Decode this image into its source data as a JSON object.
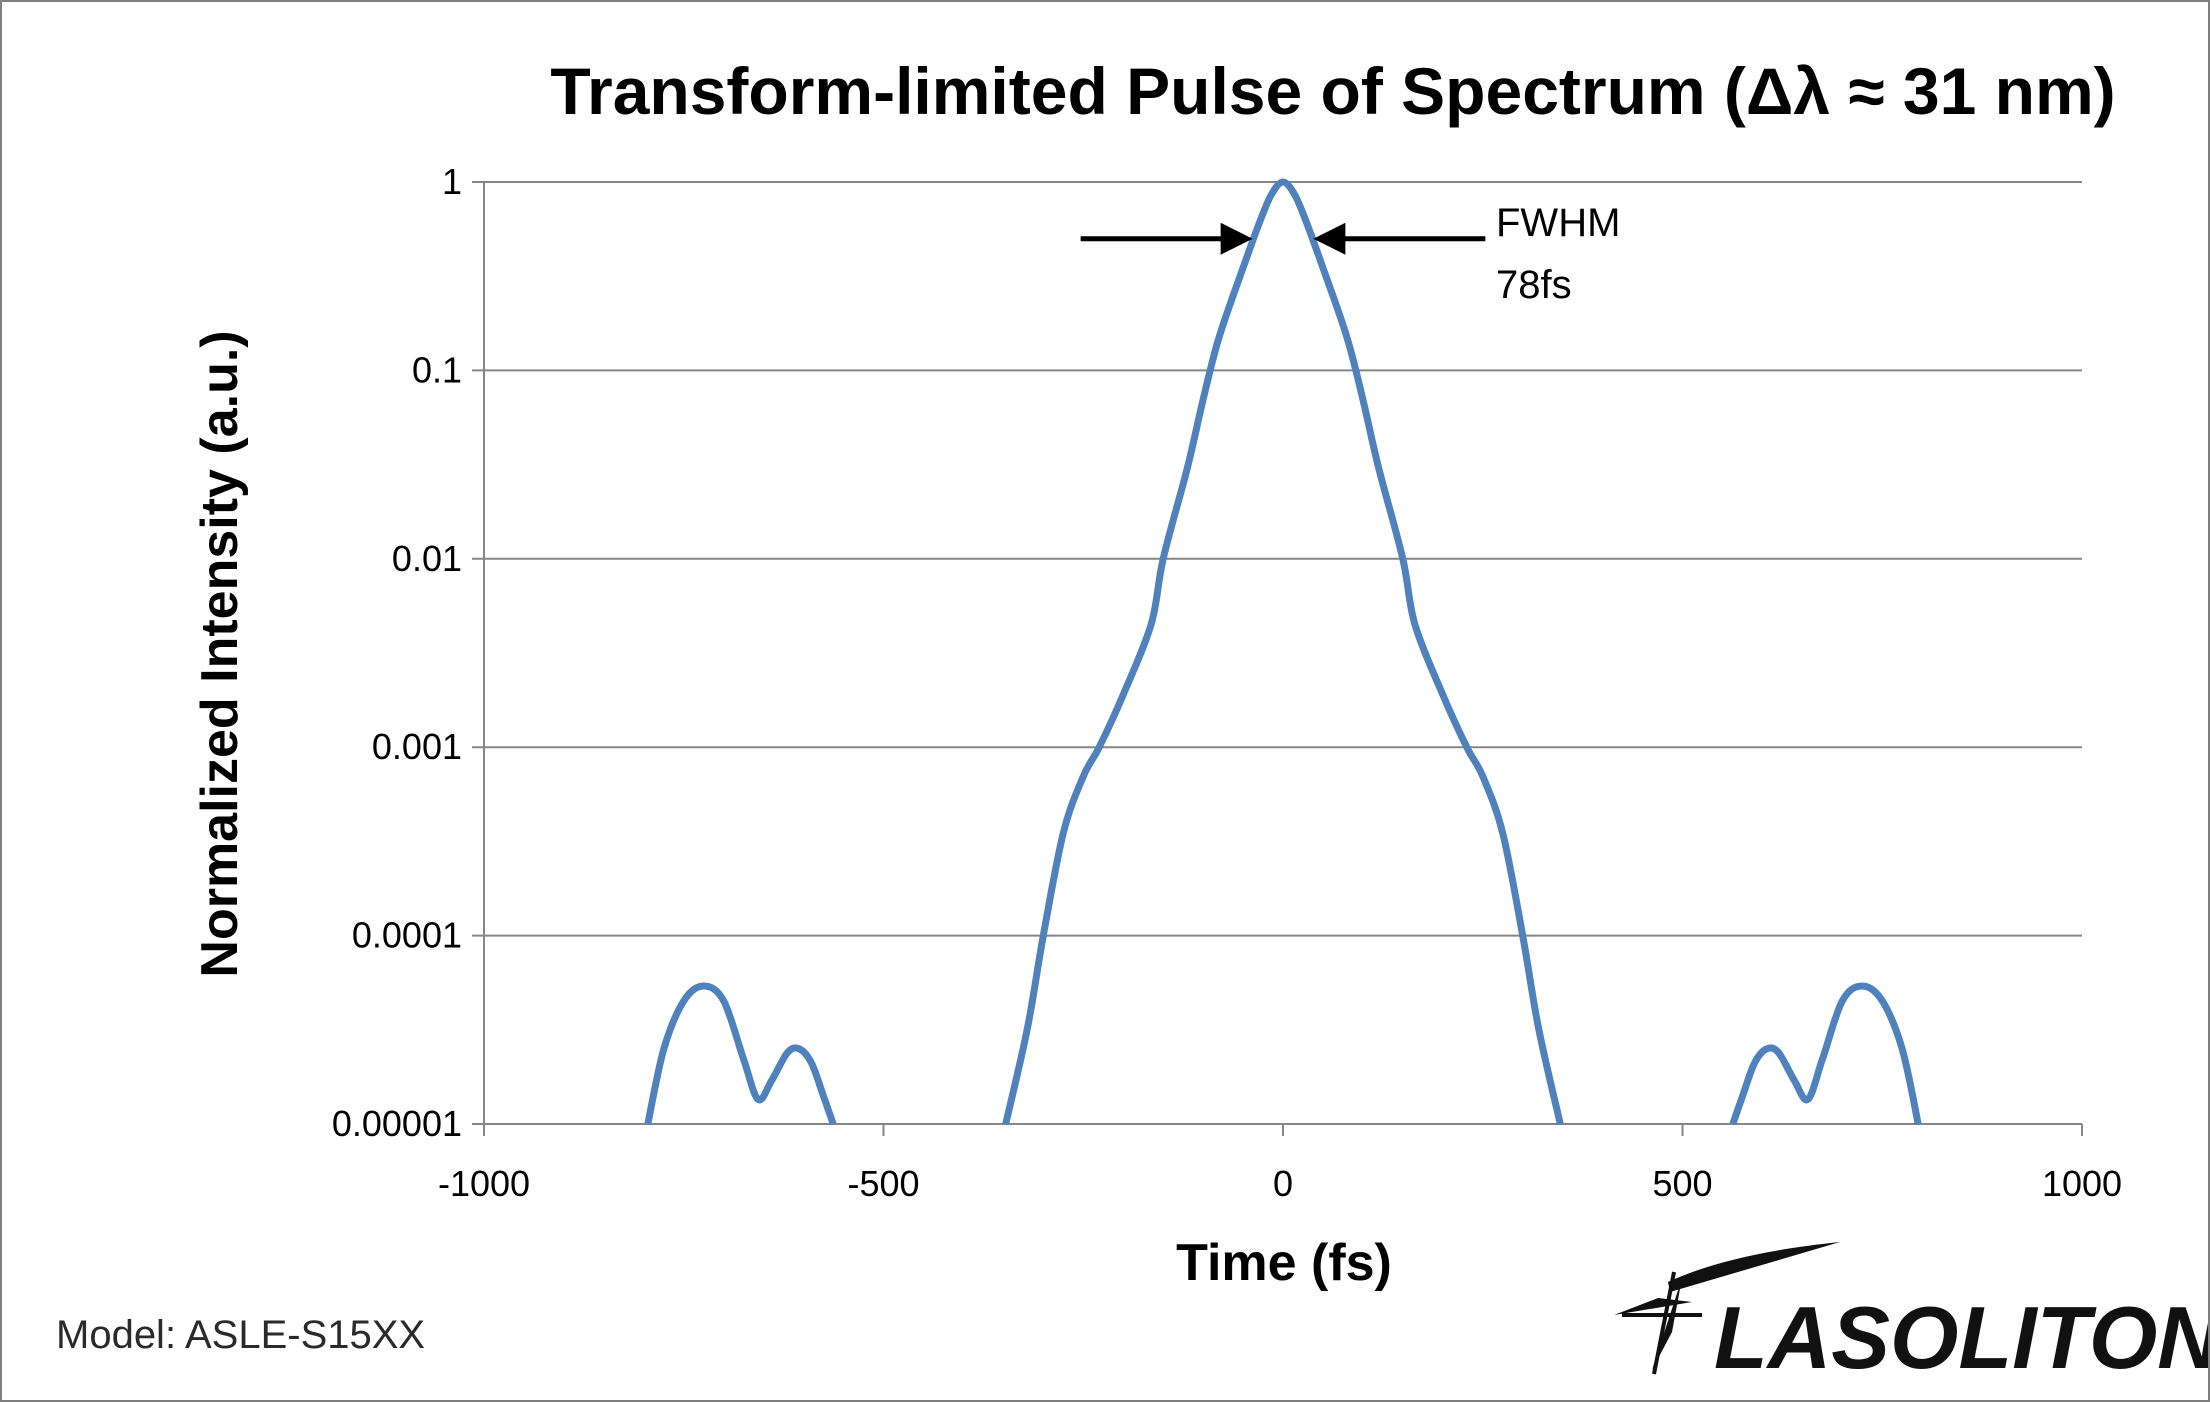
{
  "chart_data": {
    "type": "line",
    "title": "Transform-limited Pulse of Spectrum (Δλ ≈ 31 nm)",
    "xlabel": "Time (fs)",
    "ylabel": "Normalized Intensity (a.u.)",
    "xlim": [
      -1000,
      1000
    ],
    "ylim": [
      1e-05,
      1
    ],
    "yscale": "log",
    "grid": true,
    "x_ticks": [
      {
        "value": -1000,
        "label": "-1000"
      },
      {
        "value": -500,
        "label": "-500"
      },
      {
        "value": 0,
        "label": "0"
      },
      {
        "value": 500,
        "label": "500"
      },
      {
        "value": 1000,
        "label": "1000"
      }
    ],
    "y_ticks": [
      {
        "value": 1,
        "label": "1"
      },
      {
        "value": 0.1,
        "label": "0.1"
      },
      {
        "value": 0.01,
        "label": "0.01"
      },
      {
        "value": 0.001,
        "label": "0.001"
      },
      {
        "value": 0.0001,
        "label": "0.0001"
      },
      {
        "value": 1e-05,
        "label": "0.00001"
      }
    ],
    "series": [
      {
        "name": "Transform-limited pulse",
        "color": "#4f81bd",
        "segments": [
          [
            [
              -795,
              1e-05
            ],
            [
              -775,
              2.5e-05
            ],
            [
              -750,
              4.5e-05
            ],
            [
              -725,
              5.4e-05
            ],
            [
              -700,
              4.5e-05
            ],
            [
              -675,
              2.2e-05
            ],
            [
              -657,
              1.35e-05
            ],
            [
              -640,
              1.7e-05
            ],
            [
              -620,
              2.4e-05
            ],
            [
              -605,
              2.5e-05
            ],
            [
              -590,
              2.1e-05
            ],
            [
              -575,
              1.4e-05
            ],
            [
              -563,
              1e-05
            ]
          ],
          [
            [
              -347,
              1e-05
            ],
            [
              -320,
              3.2e-05
            ],
            [
              -300,
              0.0001
            ],
            [
              -275,
              0.00035
            ],
            [
              -250,
              0.0007
            ],
            [
              -230,
              0.001
            ],
            [
              -200,
              0.0019
            ],
            [
              -165,
              0.0045
            ],
            [
              -150,
              0.01
            ],
            [
              -120,
              0.03
            ],
            [
              -100,
              0.07
            ],
            [
              -80,
              0.15
            ],
            [
              -50,
              0.35
            ],
            [
              -30,
              0.6
            ],
            [
              -15,
              0.85
            ],
            [
              0,
              1
            ],
            [
              15,
              0.85
            ],
            [
              30,
              0.6
            ],
            [
              50,
              0.35
            ],
            [
              80,
              0.15
            ],
            [
              100,
              0.07
            ],
            [
              120,
              0.03
            ],
            [
              150,
              0.01
            ],
            [
              165,
              0.0045
            ],
            [
              200,
              0.0019
            ],
            [
              230,
              0.001
            ],
            [
              250,
              0.0007
            ],
            [
              275,
              0.00035
            ],
            [
              300,
              0.0001
            ],
            [
              320,
              3.2e-05
            ],
            [
              347,
              1e-05
            ]
          ],
          [
            [
              563,
              1e-05
            ],
            [
              575,
              1.4e-05
            ],
            [
              590,
              2.1e-05
            ],
            [
              605,
              2.5e-05
            ],
            [
              620,
              2.4e-05
            ],
            [
              640,
              1.7e-05
            ],
            [
              657,
              1.35e-05
            ],
            [
              675,
              2.2e-05
            ],
            [
              700,
              4.5e-05
            ],
            [
              725,
              5.4e-05
            ],
            [
              750,
              4.5e-05
            ],
            [
              775,
              2.5e-05
            ],
            [
              795,
              1e-05
            ]
          ]
        ]
      }
    ],
    "annotations": {
      "fwhm_label": "FWHM",
      "fwhm_value": "78fs",
      "fwhm_left_time": -38,
      "fwhm_right_time": 38,
      "fwhm_level": 0.5
    }
  },
  "footer": {
    "model": "Model: ASLE-S15XX",
    "logo_text": "LASOLITON"
  }
}
